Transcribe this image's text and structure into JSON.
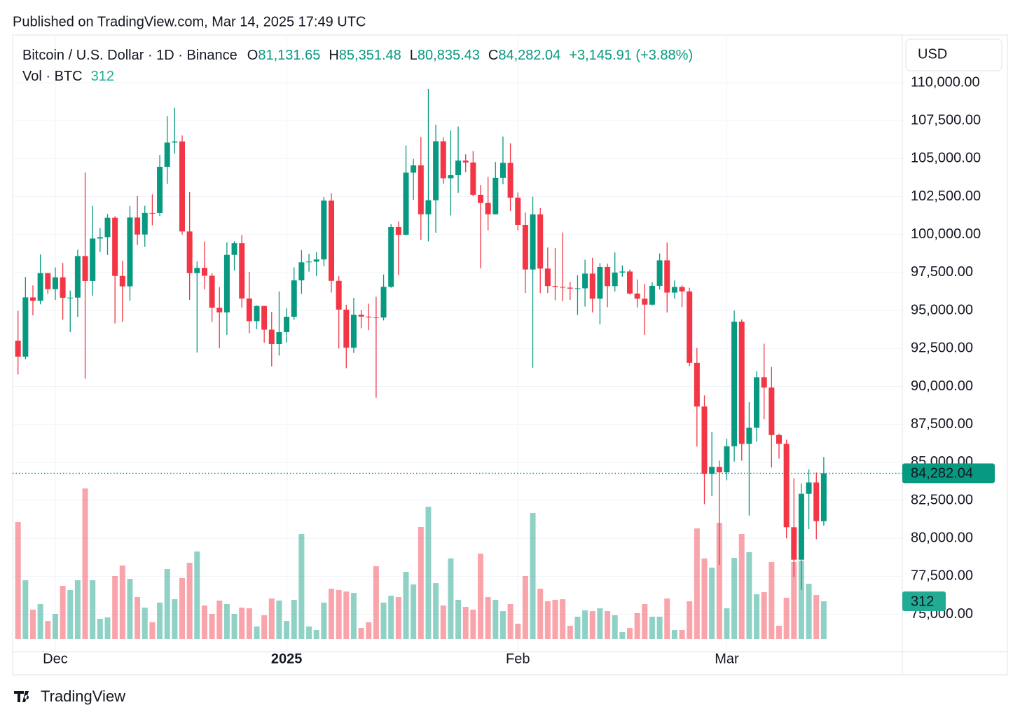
{
  "published": "Published on TradingView.com, Mar 14, 2025 17:49 UTC",
  "brand": "TradingView",
  "chart_data": {
    "type": "candlestick",
    "title": "Bitcoin / U.S. Dollar · 1D · Binance",
    "ohlc_header": [
      {
        "key": "O",
        "text": "81,131.65"
      },
      {
        "key": "H",
        "text": "85,351.48"
      },
      {
        "key": "L",
        "text": "80,835.43"
      },
      {
        "key": "C",
        "text": "84,282.04"
      }
    ],
    "change": "+3,145.91 (+3.88%)",
    "currency": "USD",
    "last_price_label": "84,282.04",
    "up_color": "#089981",
    "down_color": "#f23645",
    "grid": true,
    "categories": [
      null,
      null,
      null,
      null,
      null,
      "Dec",
      null,
      null,
      null,
      null,
      null,
      null,
      null,
      null,
      null,
      null,
      null,
      null,
      null,
      null,
      null,
      null,
      null,
      null,
      null,
      null,
      null,
      null,
      null,
      null,
      null,
      null,
      null,
      null,
      null,
      null,
      "2025",
      null,
      null,
      null,
      null,
      null,
      null,
      null,
      null,
      null,
      null,
      null,
      null,
      null,
      null,
      null,
      null,
      null,
      null,
      null,
      null,
      null,
      null,
      null,
      null,
      null,
      null,
      null,
      null,
      null,
      null,
      "Feb",
      null,
      null,
      null,
      null,
      null,
      null,
      null,
      null,
      null,
      null,
      null,
      null,
      null,
      null,
      null,
      null,
      null,
      null,
      null,
      null,
      null,
      null,
      null,
      null,
      null,
      null,
      null,
      "Mar",
      null,
      null,
      null,
      null,
      null,
      null,
      null,
      null,
      null,
      null,
      null,
      null,
      null
    ],
    "open": [
      93010,
      91965,
      95863,
      95643,
      97460,
      96407,
      97185,
      95840,
      95849,
      98587,
      96945,
      99740,
      99831,
      101109,
      97276,
      96593,
      101125,
      100004,
      101424,
      101420,
      104463,
      106058,
      106133,
      100204,
      97461,
      97805,
      97291,
      95186,
      94881,
      98663,
      99429,
      95792,
      94299,
      95300,
      93738,
      92792,
      93576,
      94591,
      96984,
      98174,
      98220,
      98363,
      102235,
      96954,
      95060,
      92552,
      94726,
      94599,
      94545,
      94536,
      96560,
      100497,
      99987,
      104077,
      104556,
      101335,
      102260,
      106143,
      103706,
      103910,
      104870,
      104746,
      102620,
      102082,
      101335,
      103733,
      104722,
      102429,
      100635,
      97700,
      101328,
      97763,
      96612,
      96554,
      96506,
      96444,
      96462,
      97430,
      95778,
      97869,
      96608,
      97500,
      97569,
      96118,
      95780,
      95388,
      96623,
      98305,
      96181,
      96551,
      96258,
      91552,
      88680,
      84250,
      84708,
      84349,
      86064,
      94270,
      86221,
      87281,
      90606,
      89931,
      86801,
      86222,
      80734,
      78595,
      82932,
      83680,
      81131.65
    ],
    "high": [
      94973,
      97208,
      96650,
      98693,
      97463,
      97836,
      98130,
      96305,
      99000,
      104088,
      101898,
      100439,
      101351,
      101215,
      98270,
      101888,
      102540,
      101895,
      102650,
      105250,
      107793,
      108353,
      106524,
      102800,
      98233,
      99540,
      97448,
      96538,
      99487,
      99569,
      99963,
      97544,
      95340,
      95318,
      94903,
      96250,
      95151,
      97839,
      98976,
      98734,
      98836,
      102480,
      102724,
      97268,
      95382,
      95836,
      95050,
      95450,
      95900,
      97371,
      100681,
      100866,
      105865,
      104988,
      106422,
      109588,
      107240,
      106394,
      106850,
      107120,
      105286,
      105500,
      103260,
      103800,
      104782,
      106457,
      106012,
      102783,
      101456,
      102500,
      101745,
      99149,
      99120,
      100137,
      96880,
      97323,
      98345,
      98478,
      98119,
      98083,
      98826,
      97972,
      97704,
      97046,
      96753,
      96878,
      98756,
      99475,
      96980,
      96650,
      96500,
      92540,
      89414,
      87000,
      85120,
      86558,
      95000,
      94416,
      88967,
      90998,
      92810,
      91283,
      86897,
      86500,
      83955,
      83617,
      84539,
      84336,
      85351.48
    ],
    "low": [
      90791,
      91792,
      94677,
      95407,
      96092,
      95693,
      94395,
      93578,
      94587,
      90500,
      95981,
      98844,
      98657,
      94150,
      94256,
      95658,
      99311,
      99205,
      100609,
      101237,
      103333,
      105321,
      100000,
      95700,
      92232,
      96398,
      94250,
      92520,
      93396,
      97632,
      95199,
      93500,
      93775,
      92881,
      91317,
      92033,
      92888,
      94392,
      96100,
      97562,
      97276,
      97920,
      96181,
      92500,
      91203,
      92206,
      93831,
      93711,
      89256,
      94346,
      96500,
      97335,
      99950,
      102277,
      99651,
      99550,
      100119,
      103339,
      101262,
      102750,
      104106,
      102520,
      97777,
      100272,
      101328,
      103308,
      101560,
      100279,
      96150,
      91231,
      96150,
      96155,
      95676,
      95620,
      95688,
      94713,
      95256,
      94876,
      94088,
      95217,
      96252,
      97223,
      96046,
      95205,
      93388,
      95333,
      96386,
      94871,
      95770,
      95227,
      91350,
      86050,
      82256,
      82786,
      78258,
      83824,
      85050,
      85117,
      81500,
      86379,
      87836,
      84667,
      85248,
      80000,
      77459,
      76606,
      80607,
      79939,
      80835.43
    ],
    "close": [
      91965,
      95863,
      95643,
      97460,
      96407,
      97185,
      95840,
      95849,
      98587,
      96945,
      99740,
      99831,
      101109,
      97276,
      96593,
      101125,
      100004,
      101424,
      101420,
      104463,
      106058,
      106133,
      100204,
      97461,
      97805,
      97291,
      95186,
      94881,
      98663,
      99429,
      95792,
      94299,
      95300,
      93738,
      92792,
      93576,
      94591,
      96984,
      98174,
      98220,
      98363,
      102235,
      96954,
      95060,
      92552,
      94726,
      94599,
      94545,
      94536,
      96560,
      100497,
      99987,
      104077,
      104556,
      101335,
      102260,
      106143,
      103706,
      103910,
      104870,
      104746,
      102620,
      102082,
      101335,
      103733,
      104722,
      102429,
      100635,
      97700,
      101328,
      97763,
      96612,
      96554,
      96506,
      96444,
      96462,
      97430,
      95778,
      97869,
      96608,
      97500,
      97569,
      96118,
      95780,
      95388,
      96623,
      98305,
      96181,
      96551,
      96258,
      91552,
      88680,
      84250,
      84708,
      84349,
      86064,
      94270,
      86220,
      87281,
      90606,
      89931,
      86801,
      86222,
      80734,
      78595,
      82932,
      83680,
      81136,
      84282.04
    ],
    "volume": {
      "name": "Vol · BTC",
      "axis": "y2",
      "values": [
        965,
        486,
        243,
        289,
        150,
        208,
        439,
        405,
        486,
        1243,
        486,
        168,
        179,
        520,
        607,
        497,
        347,
        260,
        139,
        301,
        578,
        329,
        503,
        630,
        723,
        277,
        208,
        318,
        289,
        208,
        260,
        254,
        104,
        197,
        335,
        318,
        150,
        324,
        867,
        104,
        75,
        301,
        416,
        405,
        393,
        381,
        92,
        139,
        601,
        301,
        358,
        347,
        555,
        451,
        925,
        1092,
        462,
        277,
        665,
        324,
        266,
        243,
        705,
        347,
        324,
        231,
        289,
        127,
        520,
        1040,
        416,
        312,
        324,
        329,
        110,
        185,
        237,
        231,
        254,
        231,
        197,
        58,
        92,
        214,
        289,
        185,
        185,
        335,
        75,
        75,
        312,
        913,
        665,
        590,
        959,
        254,
        670,
        867,
        717,
        370,
        387,
        636,
        110,
        341,
        636,
        647,
        457,
        364,
        312
      ]
    },
    "ylim": [
      72500,
      112500
    ],
    "y2lim": [
      0,
      1500
    ],
    "yticks": [
      {
        "value": 75000,
        "label": "75,000.00"
      },
      {
        "value": 77500,
        "label": "77,500.00"
      },
      {
        "value": 80000,
        "label": "80,000.00"
      },
      {
        "value": 82500,
        "label": "82,500.00"
      },
      {
        "value": 85000,
        "label": "85,000.00"
      },
      {
        "value": 87500,
        "label": "87,500.00"
      },
      {
        "value": 90000,
        "label": "90,000.00"
      },
      {
        "value": 92500,
        "label": "92,500.00"
      },
      {
        "value": 95000,
        "label": "95,000.00"
      },
      {
        "value": 97500,
        "label": "97,500.00"
      },
      {
        "value": 100000,
        "label": "100,000.00"
      },
      {
        "value": 102500,
        "label": "102,500.00"
      },
      {
        "value": 105000,
        "label": "105,000.00"
      },
      {
        "value": 107500,
        "label": "107,500.00"
      },
      {
        "value": 110000,
        "label": "110,000.00"
      }
    ]
  }
}
